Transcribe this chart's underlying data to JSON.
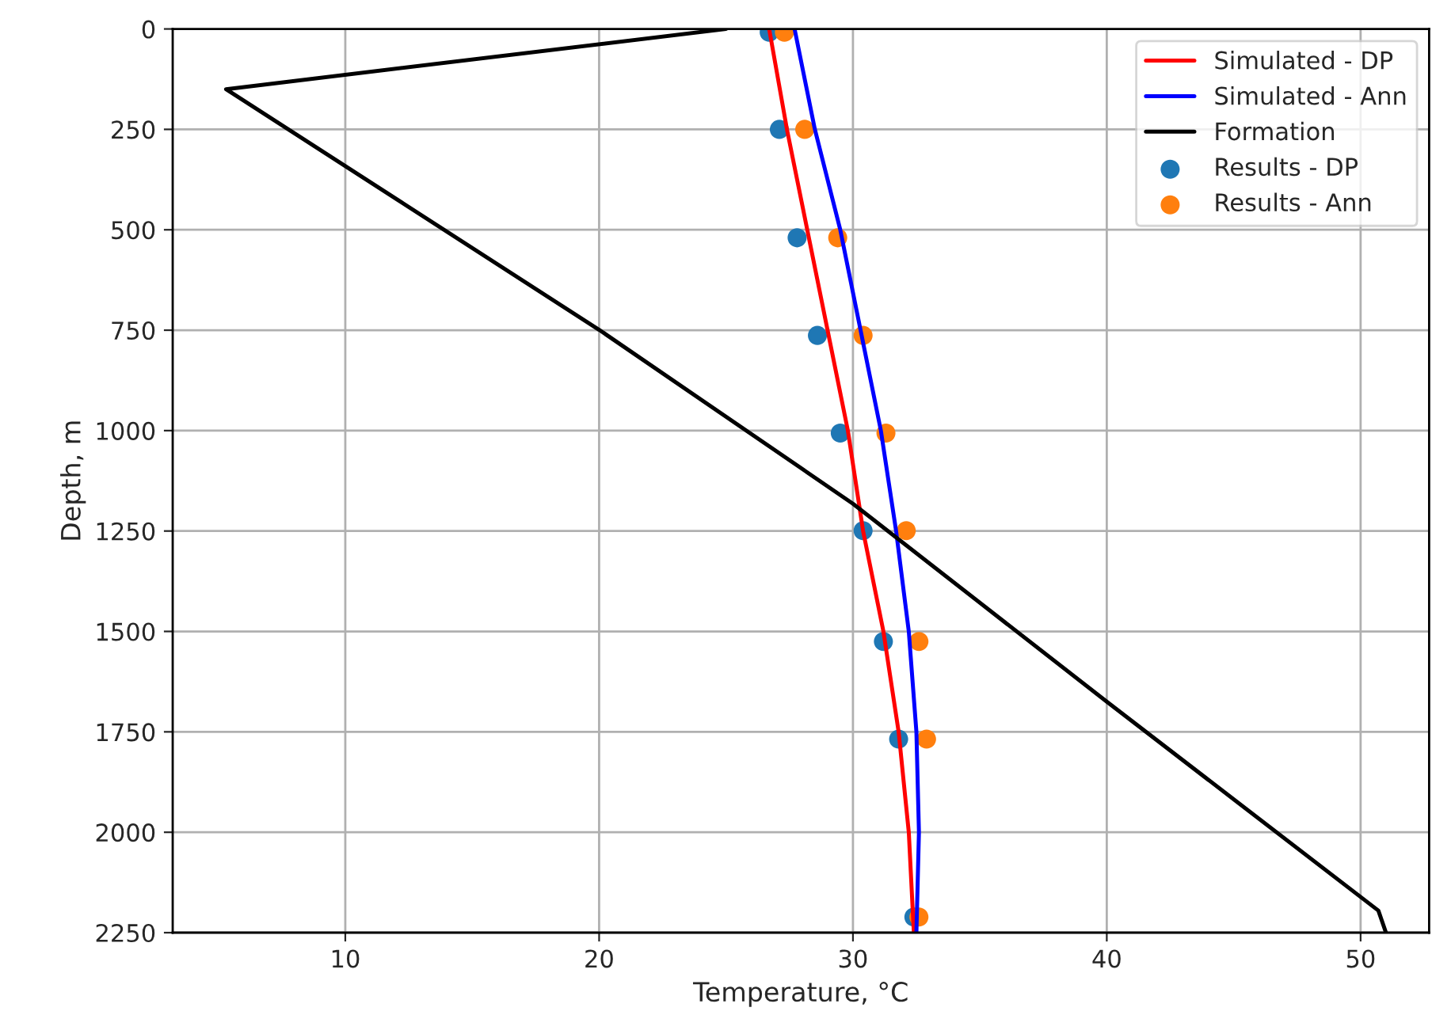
{
  "chart_data": {
    "type": "line",
    "xlabel": "Temperature, °C",
    "ylabel": "Depth, m",
    "xlim": [
      3.2,
      52.7
    ],
    "xticks": [
      10,
      20,
      30,
      40,
      50
    ],
    "ylim": [
      2250,
      0
    ],
    "yticks": [
      0,
      250,
      500,
      750,
      1000,
      1250,
      1500,
      1750,
      2000,
      2250
    ],
    "grid": true,
    "legend": "top right",
    "series": [
      {
        "name": "Simulated - DP",
        "color": "#ff0000",
        "x": [
          26.7,
          27.4,
          28.2,
          29.0,
          29.8,
          30.4,
          31.2,
          31.8,
          32.2,
          32.4
        ],
        "values": [
          0,
          250,
          500,
          750,
          1000,
          1250,
          1500,
          1750,
          2000,
          2250
        ]
      },
      {
        "name": "Simulated - Ann",
        "color": "#0000ff",
        "x": [
          27.7,
          28.5,
          29.5,
          30.3,
          31.1,
          31.7,
          32.2,
          32.5,
          32.6,
          32.5
        ],
        "values": [
          0,
          250,
          500,
          750,
          1000,
          1250,
          1500,
          1750,
          2000,
          2250
        ]
      },
      {
        "name": "Formation",
        "color": "#000000",
        "x": [
          25.0,
          5.3,
          20.0,
          30.0,
          40.0,
          50.7,
          51.0
        ],
        "values": [
          0,
          150,
          749,
          1182,
          1675,
          2195,
          2250
        ]
      },
      {
        "name": "Results - DP",
        "type": "scatter",
        "color": "#1f77b4",
        "x": [
          26.7,
          27.1,
          27.8,
          28.6,
          29.5,
          30.4,
          31.2,
          31.8,
          32.4
        ],
        "values": [
          8,
          250,
          520,
          763,
          1006,
          1249,
          1525,
          1768,
          2211
        ]
      },
      {
        "name": "Results - Ann",
        "type": "scatter",
        "color": "#ff7f0e",
        "x": [
          27.3,
          28.1,
          29.4,
          30.4,
          31.3,
          32.1,
          32.6,
          32.9,
          32.6
        ],
        "values": [
          8,
          250,
          520,
          763,
          1006,
          1249,
          1525,
          1768,
          2211
        ]
      }
    ]
  }
}
